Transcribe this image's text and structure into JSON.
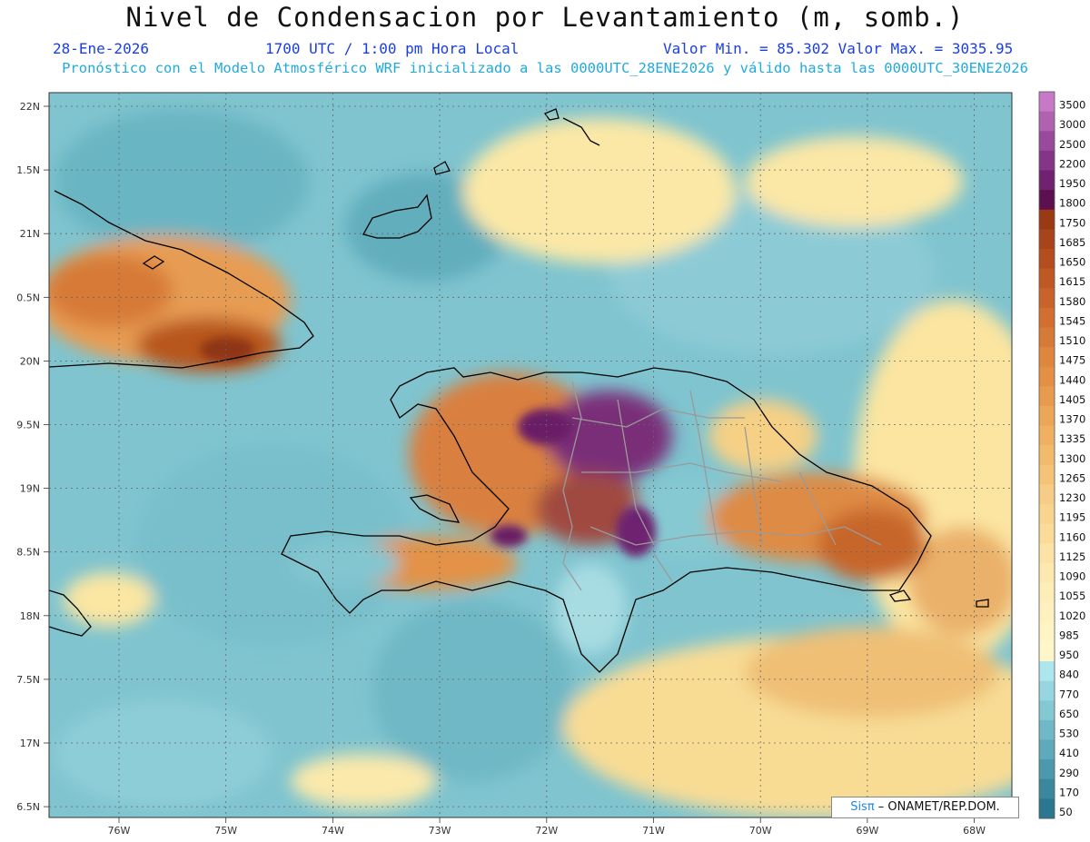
{
  "header": {
    "title": "Nivel de Condensacion por Levantamiento (m, somb.)",
    "date": "28-Ene-2026",
    "time": "1700 UTC / 1:00 pm Hora Local",
    "minmax": "Valor Min. = 85.302  Valor Max. = 3035.95",
    "model_info": "Pronóstico con el Modelo Atmosférico WRF inicializado a las 0000UTC_28ENE2026 y válido hasta las  0000UTC_30ENE2026"
  },
  "axes": {
    "lat_labels": [
      "22N",
      "1.5N",
      "21N",
      "0.5N",
      "20N",
      "9.5N",
      "19N",
      "8.5N",
      "18N",
      "7.5N",
      "17N",
      "6.5N"
    ],
    "lon_labels": [
      "76W",
      "75W",
      "74W",
      "73W",
      "72W",
      "71W",
      "70W",
      "69W",
      "68W"
    ]
  },
  "colorbar": {
    "labels": [
      "3500",
      "3000",
      "2500",
      "2200",
      "1950",
      "1800",
      "1750",
      "1685",
      "1650",
      "1615",
      "1580",
      "1545",
      "1510",
      "1475",
      "1440",
      "1405",
      "1370",
      "1335",
      "1300",
      "1265",
      "1230",
      "1195",
      "1160",
      "1125",
      "1090",
      "1055",
      "1020",
      "985",
      "950",
      "840",
      "770",
      "650",
      "530",
      "410",
      "290",
      "170",
      "50"
    ],
    "colors": [
      "#c779c7",
      "#b061b0",
      "#9a4a9a",
      "#853585",
      "#70216f",
      "#5c1050",
      "#9a3a14",
      "#a8441a",
      "#b44e1f",
      "#bf5924",
      "#c9632a",
      "#d16e30",
      "#d87a37",
      "#de853e",
      "#e39046",
      "#e89b4f",
      "#ecA658",
      "#efb062",
      "#f2ba6d",
      "#f5c378",
      "#f7cc84",
      "#f9d48f",
      "#fadb9a",
      "#fce2a5",
      "#fde8af",
      "#fdedb8",
      "#fef1bf",
      "#fef4c4",
      "#fef6c8",
      "#aee6ee",
      "#97d6e0",
      "#84c8d4",
      "#70b8c7",
      "#5ea9bb",
      "#4c99ad",
      "#3b889e",
      "#2b778f"
    ]
  },
  "credit": {
    "sis": "Sisπ",
    "rest": " – ONAMET/REP.DOM."
  }
}
